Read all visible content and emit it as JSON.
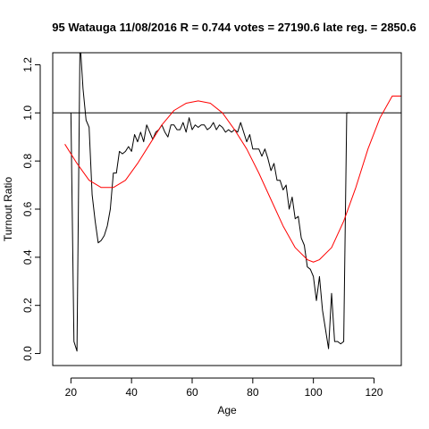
{
  "chart_data": {
    "type": "line",
    "title": "95 Watauga 11/08/2016 R = 0.744 votes = 27190.6 late reg. = 2850.6",
    "xlabel": "Age",
    "ylabel": "Turnout Ratio",
    "xlim": [
      14,
      129
    ],
    "ylim": [
      -0.05,
      1.25
    ],
    "x_ticks": [
      20,
      40,
      60,
      80,
      100,
      120
    ],
    "y_ticks": [
      0.0,
      0.2,
      0.4,
      0.6,
      0.8,
      1.0,
      1.2
    ],
    "y_tick_labels": [
      "0.0",
      "0.2",
      "0.4",
      "0.6",
      "0.8",
      "1.0",
      "1.2"
    ],
    "x_tick_labels": [
      "20",
      "40",
      "60",
      "80",
      "100",
      "120"
    ],
    "reference_line": {
      "y": 1.0,
      "color": "#000000"
    },
    "series": [
      {
        "color": "#000000",
        "x": [
          20,
          21,
          22,
          23,
          24,
          25,
          26,
          27,
          28,
          29,
          30,
          31,
          32,
          33,
          34,
          35,
          36,
          37,
          38,
          39,
          40,
          41,
          42,
          43,
          44,
          45,
          46,
          47,
          48,
          49,
          50,
          51,
          52,
          53,
          54,
          55,
          56,
          57,
          58,
          59,
          60,
          61,
          62,
          63,
          64,
          65,
          66,
          67,
          68,
          69,
          70,
          71,
          72,
          73,
          74,
          75,
          76,
          77,
          78,
          79,
          80,
          81,
          82,
          83,
          84,
          85,
          86,
          87,
          88,
          89,
          90,
          91,
          92,
          93,
          94,
          95,
          96,
          97,
          98,
          99,
          100,
          101,
          102,
          103,
          104,
          105,
          106,
          107,
          108,
          109,
          110,
          111,
          112
        ],
        "values": [
          1.0,
          0.05,
          0.01,
          1.3,
          1.1,
          0.97,
          0.94,
          0.66,
          0.55,
          0.46,
          0.47,
          0.49,
          0.53,
          0.6,
          0.75,
          0.75,
          0.84,
          0.83,
          0.84,
          0.86,
          0.84,
          0.91,
          0.88,
          0.92,
          0.88,
          0.95,
          0.92,
          0.89,
          0.92,
          0.93,
          0.95,
          0.92,
          0.9,
          0.95,
          0.95,
          0.93,
          0.93,
          0.96,
          0.92,
          0.98,
          0.93,
          0.95,
          0.94,
          0.95,
          0.95,
          0.93,
          0.94,
          0.96,
          0.93,
          0.95,
          0.94,
          0.92,
          0.93,
          0.92,
          0.93,
          0.92,
          0.96,
          0.92,
          0.88,
          0.91,
          0.85,
          0.85,
          0.85,
          0.82,
          0.85,
          0.81,
          0.76,
          0.79,
          0.72,
          0.72,
          0.68,
          0.7,
          0.6,
          0.65,
          0.56,
          0.57,
          0.48,
          0.45,
          0.36,
          0.35,
          0.32,
          0.22,
          0.32,
          0.18,
          0.1,
          0.02,
          0.25,
          0.05,
          0.05,
          0.04,
          0.05,
          1.0,
          1.0
        ]
      },
      {
        "color": "#ff0000",
        "x": [
          18,
          22,
          26,
          30,
          34,
          38,
          42,
          46,
          50,
          54,
          58,
          62,
          66,
          70,
          74,
          78,
          82,
          86,
          90,
          94,
          98,
          100,
          102,
          106,
          110,
          114,
          118,
          122,
          126,
          129
        ],
        "values": [
          0.87,
          0.79,
          0.72,
          0.69,
          0.69,
          0.72,
          0.79,
          0.87,
          0.95,
          1.01,
          1.04,
          1.05,
          1.04,
          1.0,
          0.93,
          0.85,
          0.75,
          0.64,
          0.53,
          0.44,
          0.39,
          0.38,
          0.39,
          0.44,
          0.55,
          0.69,
          0.85,
          0.98,
          1.07,
          1.07
        ]
      }
    ]
  }
}
